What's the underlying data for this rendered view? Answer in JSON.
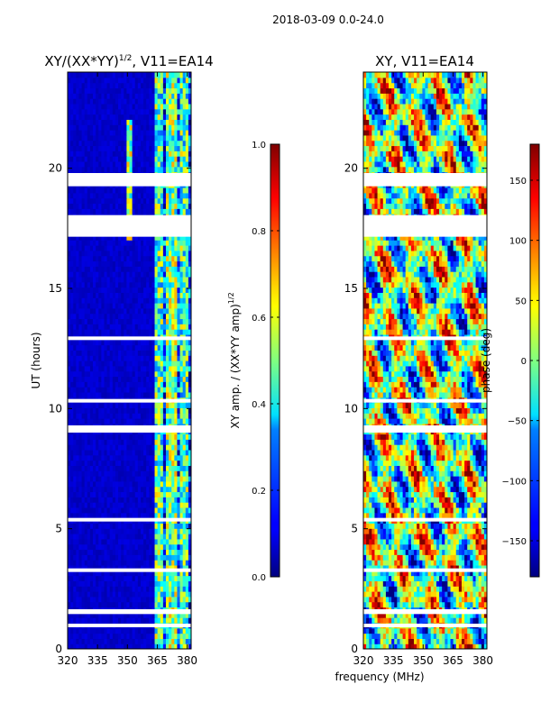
{
  "figure": {
    "suptitle": "2018-03-09 0.0-24.0",
    "xlabel_shared": "frequency (MHz)"
  },
  "chart_data": [
    {
      "type": "heatmap",
      "title": "XY/(XX*YY)",
      "title_superscript": "1/2",
      "title_suffix": ", V11=EA14",
      "ylabel": "UT (hours)",
      "xlim": [
        320,
        382
      ],
      "ylim": [
        0,
        24
      ],
      "xticks": [
        320,
        335,
        350,
        365,
        380
      ],
      "yticks": [
        0,
        5,
        10,
        15,
        20
      ],
      "colormap": "jet",
      "colorbar": {
        "label": "XY amp. / (XX*YY amp)",
        "label_superscript": "1/2",
        "range": [
          0.0,
          1.0
        ],
        "ticks": [
          0.0,
          0.2,
          0.4,
          0.6,
          0.8,
          1.0
        ],
        "tick_labels": [
          "0.0",
          "0.2",
          "0.4",
          "0.6",
          "0.8",
          "1.0"
        ]
      },
      "flagged_hours": [
        [
          19.25,
          19.8
        ],
        [
          17.15,
          18.05
        ],
        [
          12.85,
          13.0
        ],
        [
          10.25,
          10.4
        ],
        [
          9.0,
          9.3
        ],
        [
          5.3,
          5.45
        ],
        [
          3.2,
          3.35
        ],
        [
          1.45,
          1.65
        ],
        [
          0.9,
          1.05
        ]
      ],
      "band_structure": [
        {
          "range": [
            320,
            364
          ],
          "level": 0.05
        },
        {
          "range": [
            364,
            368
          ],
          "level": 0.45
        },
        {
          "range": [
            368,
            370
          ],
          "level": 0.2
        },
        {
          "range": [
            370,
            375
          ],
          "level": 0.5
        },
        {
          "range": [
            375,
            377
          ],
          "level": 0.25
        },
        {
          "range": [
            377,
            380
          ],
          "level": 0.45
        },
        {
          "range": [
            380,
            382
          ],
          "level": 0.2
        }
      ]
    },
    {
      "type": "heatmap",
      "title": "XY, V11=EA14",
      "xlim": [
        320,
        382
      ],
      "ylim": [
        0,
        24
      ],
      "xticks": [
        320,
        335,
        350,
        365,
        380
      ],
      "yticks": [
        0,
        5,
        10,
        15,
        20
      ],
      "colormap": "jet",
      "colorbar": {
        "label": "phase (deg)",
        "range": [
          -180,
          180
        ],
        "ticks": [
          -150,
          -100,
          -50,
          0,
          50,
          100,
          150
        ],
        "tick_labels": [
          "−150",
          "−100",
          "−50",
          "0",
          "50",
          "100",
          "150"
        ]
      },
      "flagged_hours": [
        [
          19.25,
          19.8
        ],
        [
          17.15,
          18.05
        ],
        [
          12.85,
          13.0
        ],
        [
          10.25,
          10.4
        ],
        [
          9.0,
          9.3
        ],
        [
          5.3,
          5.45
        ],
        [
          3.2,
          3.35
        ],
        [
          1.45,
          1.65
        ],
        [
          0.9,
          1.05
        ]
      ]
    }
  ]
}
